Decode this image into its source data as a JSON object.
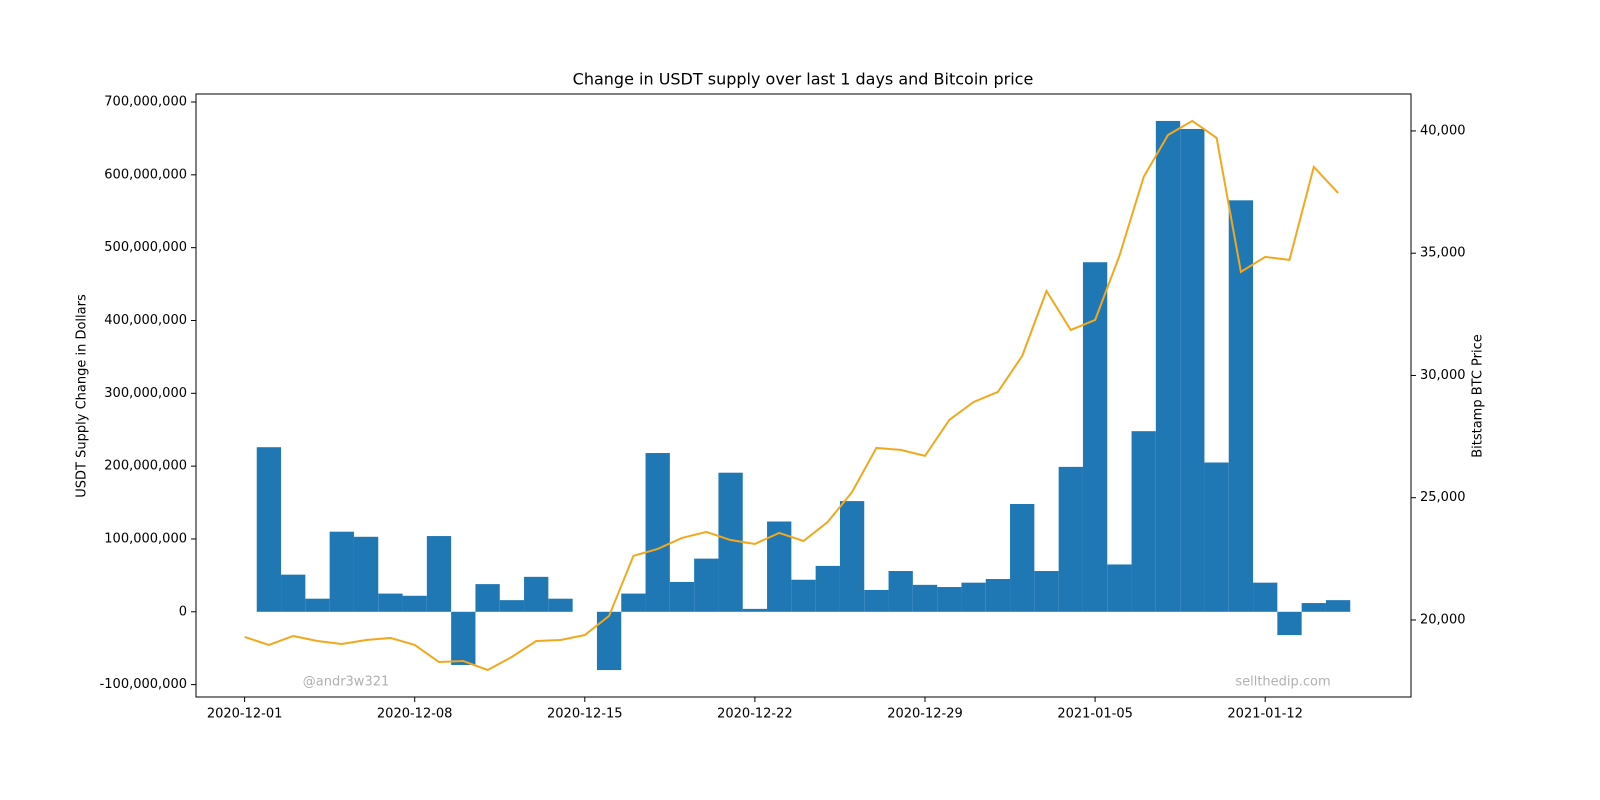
{
  "chart_data": {
    "type": "bar+line",
    "title": "Change in USDT supply over last 1 days and Bitcoin price",
    "ylabel": "USDT Supply Change in Dollars",
    "y2label": "Bitstamp BTC Price",
    "annotations": [
      "@andr3w321",
      "sellthedip.com"
    ],
    "x": [
      "2020-12-01",
      "2020-12-02",
      "2020-12-03",
      "2020-12-04",
      "2020-12-05",
      "2020-12-06",
      "2020-12-07",
      "2020-12-08",
      "2020-12-09",
      "2020-12-10",
      "2020-12-11",
      "2020-12-12",
      "2020-12-13",
      "2020-12-14",
      "2020-12-15",
      "2020-12-16",
      "2020-12-17",
      "2020-12-18",
      "2020-12-19",
      "2020-12-20",
      "2020-12-21",
      "2020-12-22",
      "2020-12-23",
      "2020-12-24",
      "2020-12-25",
      "2020-12-26",
      "2020-12-27",
      "2020-12-28",
      "2020-12-29",
      "2020-12-30",
      "2020-12-31",
      "2021-01-01",
      "2021-01-02",
      "2021-01-03",
      "2021-01-04",
      "2021-01-05",
      "2021-01-06",
      "2021-01-07",
      "2021-01-08",
      "2021-01-09",
      "2021-01-10",
      "2021-01-11",
      "2021-01-12",
      "2021-01-13",
      "2021-01-14",
      "2021-01-15"
    ],
    "xlim": [
      "2020-11-29",
      "2021-01-18"
    ],
    "xticks": [
      "2020-12-01",
      "2020-12-08",
      "2020-12-15",
      "2020-12-22",
      "2020-12-29",
      "2021-01-05",
      "2021-01-12"
    ],
    "ylim": [
      -117000000,
      711000000
    ],
    "yticks": [
      {
        "value": -100000000,
        "label": "-100,000,000"
      },
      0,
      {
        "value": 100000000,
        "label": "100,000,000"
      },
      {
        "value": 200000000,
        "label": "200,000,000"
      },
      {
        "value": 300000000,
        "label": "300,000,000"
      },
      {
        "value": 400000000,
        "label": "400,000,000"
      },
      {
        "value": 500000000,
        "label": "500,000,000"
      },
      {
        "value": 600000000,
        "label": "600,000,000"
      },
      {
        "value": 700000000,
        "label": "700,000,000"
      }
    ],
    "y2lim": [
      16850,
      41510
    ],
    "y2ticks": [
      {
        "value": 20000,
        "label": "20,000"
      },
      {
        "value": 25000,
        "label": "25,000"
      },
      {
        "value": 30000,
        "label": "30,000"
      },
      {
        "value": 35000,
        "label": "35,000"
      },
      {
        "value": 40000,
        "label": "40,000"
      }
    ],
    "series": [
      {
        "type": "bar",
        "color": "#1f77b4",
        "values": [
          null,
          226000000,
          51000000,
          18000000,
          110000000,
          103000000,
          25000000,
          22000000,
          104000000,
          -73000000,
          38000000,
          16000000,
          48000000,
          18000000,
          null,
          -80000000,
          25000000,
          218000000,
          41000000,
          73000000,
          191000000,
          4000000,
          124000000,
          44000000,
          63000000,
          152000000,
          30000000,
          56000000,
          37000000,
          34000000,
          40000000,
          45000000,
          148000000,
          56000000,
          199000000,
          480000000,
          65000000,
          248000000,
          674000000,
          663000000,
          205000000,
          565000000,
          40000000,
          -32000000,
          12000000,
          16000000
        ]
      },
      {
        "type": "line",
        "axis": "y2",
        "color": "#f2a81d",
        "values": [
          19305,
          18980,
          19345,
          19140,
          19020,
          19180,
          19265,
          18980,
          18280,
          18320,
          17955,
          18490,
          19140,
          19180,
          19385,
          20165,
          22620,
          22905,
          23355,
          23600,
          23270,
          23110,
          23560,
          23230,
          24010,
          25235,
          27035,
          26955,
          26710,
          28180,
          28915,
          29325,
          30800,
          33455,
          31860,
          32270,
          34890,
          38120,
          39835,
          40410,
          39715,
          34235,
          34850,
          34725,
          38530,
          37465
        ]
      }
    ]
  }
}
